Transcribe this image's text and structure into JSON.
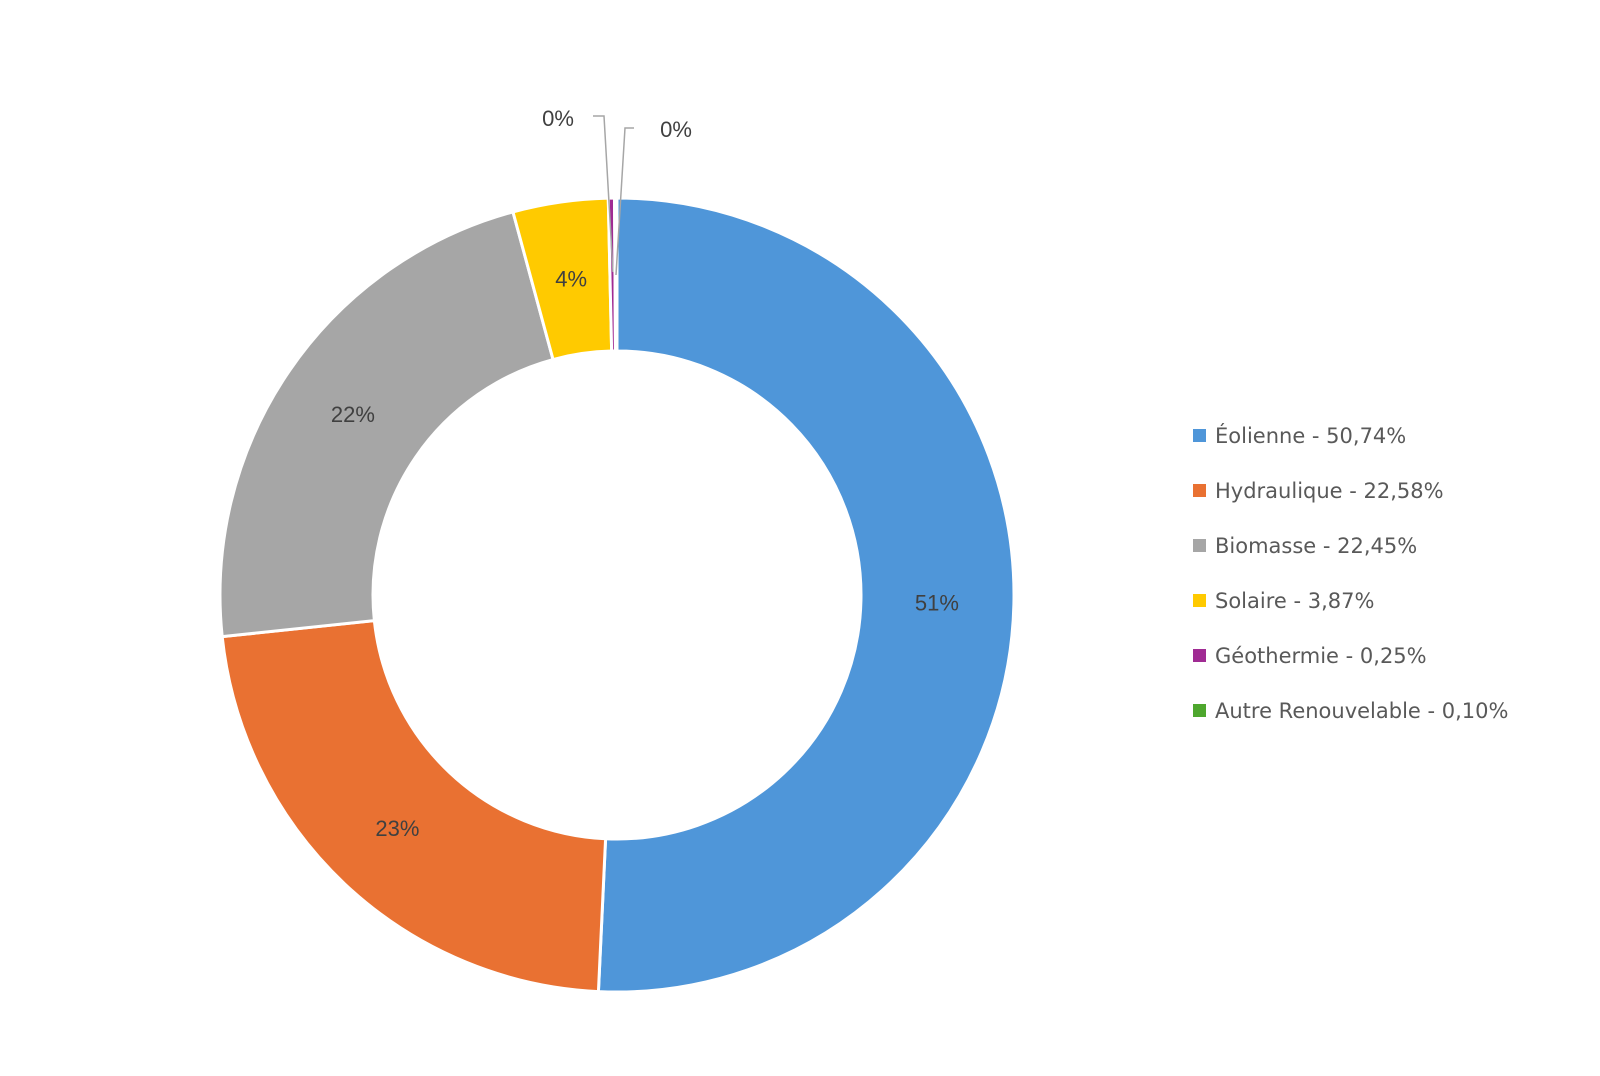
{
  "chart_data": {
    "type": "pie",
    "variant": "donut",
    "categories": [
      "Éolienne",
      "Hydraulique",
      "Biomasse",
      "Solaire",
      "Géothermie",
      "Autre Renouvelable"
    ],
    "values": [
      50.74,
      22.58,
      22.45,
      3.87,
      0.25,
      0.1
    ],
    "data_labels": [
      "51%",
      "23%",
      "22%",
      "4%",
      "0%",
      "0%"
    ],
    "colors": [
      "#4F96D9",
      "#E97132",
      "#A6A6A6",
      "#FFCA00",
      "#A02B93",
      "#4EA72E"
    ],
    "legend_placement": "right",
    "legend": [
      "Éolienne - 50,74%",
      "Hydraulique - 22,58%",
      "Biomasse - 22,45%",
      "Solaire - 3,87%",
      "Géothermie - 0,25%",
      "Autre Renouvelable - 0,10%"
    ]
  }
}
